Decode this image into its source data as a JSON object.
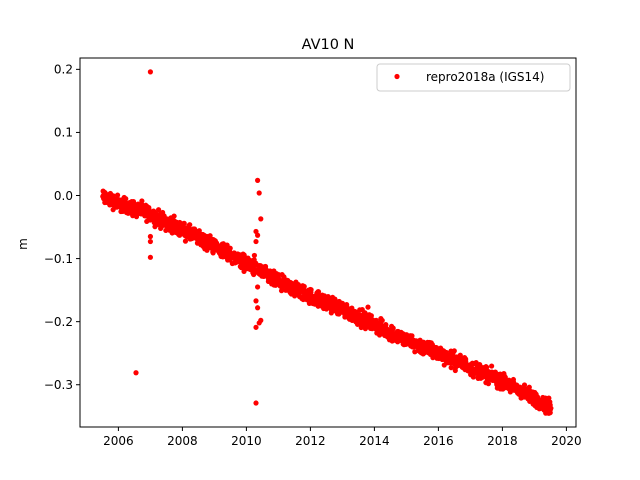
{
  "chart_data": {
    "type": "scatter",
    "title": "AV10 N",
    "xlabel": "",
    "ylabel": "m",
    "xlim": [
      2004.8,
      2020.3
    ],
    "ylim": [
      -0.367,
      0.218
    ],
    "x_ticks": [
      2006,
      2008,
      2010,
      2012,
      2014,
      2016,
      2018,
      2020
    ],
    "y_ticks": [
      0.2,
      0.1,
      0.0,
      -0.1,
      -0.2,
      -0.3
    ],
    "x_tick_labels": [
      "2006",
      "2008",
      "2010",
      "2012",
      "2014",
      "2016",
      "2018",
      "2020"
    ],
    "y_tick_labels": [
      "0.2",
      "0.1",
      "0.0",
      "−0.1",
      "−0.2",
      "−0.3"
    ],
    "grid": false,
    "legend_position": "top-right",
    "series": [
      {
        "name": "repro2018a (IGS14)",
        "color": "#ff0000",
        "marker": "circle",
        "trend": {
          "x_start": 2005.5,
          "x_end": 2019.5,
          "breakpoints": [
            [
              2005.5,
              -0.002
            ],
            [
              2006.0,
              -0.012
            ],
            [
              2007.0,
              -0.03
            ],
            [
              2008.0,
              -0.055
            ],
            [
              2009.0,
              -0.08
            ],
            [
              2010.0,
              -0.108
            ],
            [
              2011.0,
              -0.138
            ],
            [
              2012.0,
              -0.16
            ],
            [
              2013.0,
              -0.18
            ],
            [
              2014.0,
              -0.205
            ],
            [
              2015.0,
              -0.23
            ],
            [
              2016.0,
              -0.25
            ],
            [
              2017.0,
              -0.272
            ],
            [
              2018.0,
              -0.295
            ],
            [
              2019.0,
              -0.322
            ],
            [
              2019.5,
              -0.338
            ]
          ],
          "spread": 0.006,
          "gaps": []
        },
        "outliers": [
          {
            "x": 2007.0,
            "y": 0.196
          },
          {
            "x": 2006.55,
            "y": -0.281
          },
          {
            "x": 2007.0,
            "y": -0.065
          },
          {
            "x": 2007.0,
            "y": -0.073
          },
          {
            "x": 2007.0,
            "y": -0.098
          },
          {
            "x": 2010.35,
            "y": 0.024
          },
          {
            "x": 2010.4,
            "y": 0.004
          },
          {
            "x": 2010.45,
            "y": -0.037
          },
          {
            "x": 2010.3,
            "y": -0.057
          },
          {
            "x": 2010.35,
            "y": -0.063
          },
          {
            "x": 2010.3,
            "y": -0.073
          },
          {
            "x": 2010.25,
            "y": -0.095
          },
          {
            "x": 2010.35,
            "y": -0.145
          },
          {
            "x": 2010.3,
            "y": -0.167
          },
          {
            "x": 2010.35,
            "y": -0.178
          },
          {
            "x": 2010.45,
            "y": -0.198
          },
          {
            "x": 2010.4,
            "y": -0.202
          },
          {
            "x": 2010.3,
            "y": -0.209
          },
          {
            "x": 2010.3,
            "y": -0.329
          },
          {
            "x": 2012.9,
            "y": -0.168
          },
          {
            "x": 2013.8,
            "y": -0.177
          }
        ]
      }
    ]
  }
}
